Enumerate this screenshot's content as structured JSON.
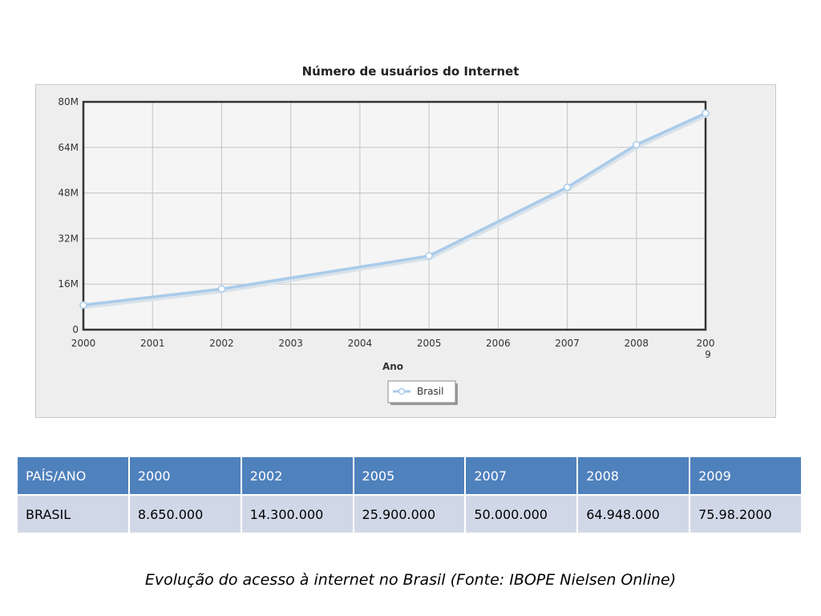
{
  "chart_data": {
    "type": "line",
    "title": "Número de usuários do Internet",
    "xlabel": "Ano",
    "ylabel": "",
    "x_ticks": [
      "2000",
      "2001",
      "2002",
      "2003",
      "2004",
      "2005",
      "2006",
      "2007",
      "2008",
      "2009"
    ],
    "y_ticks": [
      "0",
      "16M",
      "32M",
      "48M",
      "64M",
      "80M"
    ],
    "ylim": [
      0,
      80000000
    ],
    "xlim": [
      2000,
      2009
    ],
    "grid": true,
    "legend_position": "bottom-center",
    "series": [
      {
        "name": "Brasil",
        "color": "#a9cbea",
        "x": [
          2000,
          2002,
          2005,
          2007,
          2008,
          2009
        ],
        "y": [
          8650000,
          14300000,
          25900000,
          50000000,
          64948000,
          75980000
        ]
      }
    ]
  },
  "table": {
    "headers": [
      "PAÍS/ANO",
      "2000",
      "2002",
      "2005",
      "2007",
      "2008",
      "2009"
    ],
    "rows": [
      [
        "BRASIL",
        "8.650.000",
        "14.300.000",
        "25.900.000",
        "50.000.000",
        "64.948.000",
        "75.98.2000"
      ]
    ]
  },
  "caption": "Evolução do acesso à internet no Brasil (Fonte: IBOPE Nielsen Online)"
}
